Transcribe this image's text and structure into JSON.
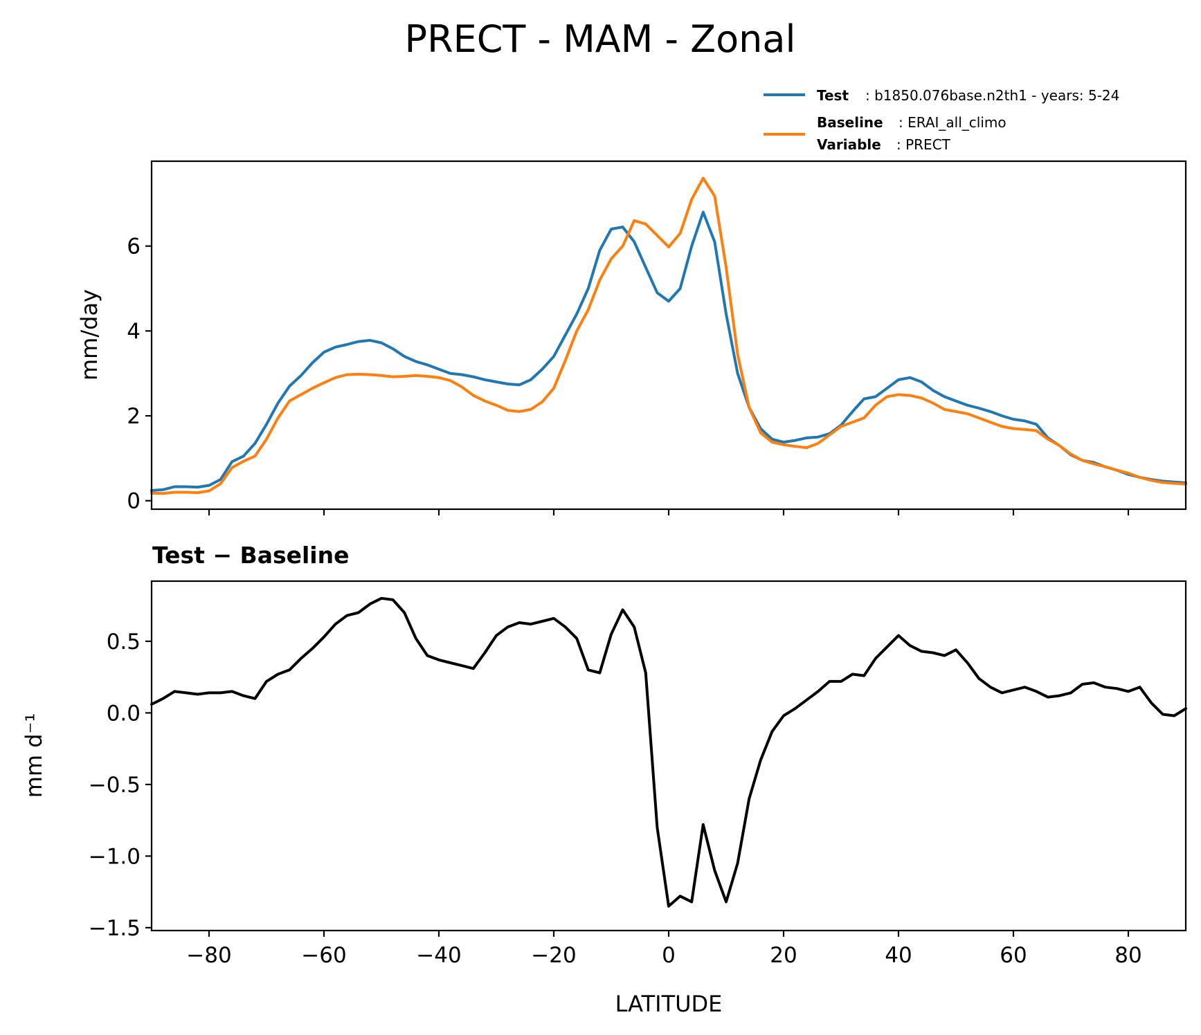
{
  "chart_data": [
    {
      "type": "line",
      "title": "PRECT - MAM - Zonal",
      "xlabel": "",
      "ylabel": "mm/day",
      "xlim": [
        -90,
        90
      ],
      "ylim": [
        -0.2,
        8.0
      ],
      "yticks": [
        0,
        2,
        4,
        6
      ],
      "ytick_labels": [
        "0",
        "2",
        "4",
        "6"
      ],
      "xticks": [
        -80,
        -60,
        -40,
        -20,
        0,
        20,
        40,
        60,
        80
      ],
      "x": [
        -90,
        -88,
        -86,
        -84,
        -82,
        -80,
        -78,
        -76,
        -74,
        -72,
        -70,
        -68,
        -66,
        -64,
        -62,
        -60,
        -58,
        -56,
        -54,
        -52,
        -50,
        -48,
        -46,
        -44,
        -42,
        -40,
        -38,
        -36,
        -34,
        -32,
        -30,
        -28,
        -26,
        -24,
        -22,
        -20,
        -18,
        -16,
        -14,
        -12,
        -10,
        -8,
        -6,
        -4,
        -2,
        0,
        2,
        4,
        6,
        8,
        10,
        12,
        14,
        16,
        18,
        20,
        22,
        24,
        26,
        28,
        30,
        32,
        34,
        36,
        38,
        40,
        42,
        44,
        46,
        48,
        50,
        52,
        54,
        56,
        58,
        60,
        62,
        64,
        66,
        68,
        70,
        72,
        74,
        76,
        78,
        80,
        82,
        84,
        86,
        88,
        90
      ],
      "series": [
        {
          "name": "Test",
          "color": "#1f77b4",
          "values": [
            0.24,
            0.26,
            0.33,
            0.33,
            0.32,
            0.36,
            0.5,
            0.92,
            1.05,
            1.35,
            1.8,
            2.3,
            2.7,
            2.95,
            3.25,
            3.5,
            3.62,
            3.68,
            3.75,
            3.78,
            3.72,
            3.58,
            3.4,
            3.28,
            3.2,
            3.1,
            3.0,
            2.97,
            2.92,
            2.85,
            2.8,
            2.75,
            2.73,
            2.85,
            3.1,
            3.4,
            3.9,
            4.4,
            5.0,
            5.9,
            6.4,
            6.45,
            6.1,
            5.5,
            4.9,
            4.7,
            5.0,
            6.0,
            6.8,
            6.1,
            4.4,
            3.0,
            2.2,
            1.7,
            1.45,
            1.38,
            1.42,
            1.48,
            1.5,
            1.58,
            1.78,
            2.1,
            2.4,
            2.45,
            2.65,
            2.85,
            2.9,
            2.8,
            2.6,
            2.45,
            2.35,
            2.25,
            2.18,
            2.1,
            2.0,
            1.92,
            1.88,
            1.8,
            1.48,
            1.3,
            1.08,
            0.95,
            0.9,
            0.8,
            0.72,
            0.62,
            0.55,
            0.5,
            0.46,
            0.44,
            0.42
          ]
        },
        {
          "name": "Baseline",
          "color": "#ff7f0e",
          "values": [
            0.18,
            0.17,
            0.2,
            0.2,
            0.19,
            0.23,
            0.4,
            0.78,
            0.93,
            1.05,
            1.45,
            1.95,
            2.35,
            2.5,
            2.65,
            2.78,
            2.9,
            2.97,
            2.98,
            2.97,
            2.95,
            2.92,
            2.93,
            2.95,
            2.93,
            2.9,
            2.83,
            2.68,
            2.48,
            2.35,
            2.25,
            2.13,
            2.1,
            2.15,
            2.33,
            2.65,
            3.3,
            4.0,
            4.5,
            5.2,
            5.7,
            6.0,
            6.6,
            6.52,
            6.25,
            5.98,
            6.3,
            7.1,
            7.6,
            7.18,
            5.5,
            3.45,
            2.2,
            1.6,
            1.38,
            1.32,
            1.28,
            1.25,
            1.35,
            1.55,
            1.75,
            1.85,
            1.95,
            2.25,
            2.45,
            2.5,
            2.48,
            2.42,
            2.3,
            2.15,
            2.1,
            2.05,
            1.95,
            1.85,
            1.75,
            1.7,
            1.68,
            1.65,
            1.45,
            1.3,
            1.1,
            0.95,
            0.87,
            0.8,
            0.72,
            0.65,
            0.55,
            0.48,
            0.43,
            0.41,
            0.39
          ]
        }
      ]
    },
    {
      "type": "line",
      "title": "Test − Baseline",
      "xlabel": "LATITUDE",
      "ylabel": "mm d⁻¹",
      "xlim": [
        -90,
        90
      ],
      "ylim": [
        -1.52,
        0.92
      ],
      "yticks": [
        0.5,
        0.0,
        -0.5,
        -1.0,
        -1.5
      ],
      "ytick_labels": [
        "0.5",
        "0.0",
        "−0.5",
        "−1.0",
        "−1.5"
      ],
      "xticks": [
        -80,
        -60,
        -40,
        -20,
        0,
        20,
        40,
        60,
        80
      ],
      "xtick_labels": [
        "−80",
        "−60",
        "−40",
        "−20",
        "0",
        "20",
        "40",
        "60",
        "80"
      ],
      "x": [
        -90,
        -88,
        -86,
        -84,
        -82,
        -80,
        -78,
        -76,
        -74,
        -72,
        -70,
        -68,
        -66,
        -64,
        -62,
        -60,
        -58,
        -56,
        -54,
        -52,
        -50,
        -48,
        -46,
        -44,
        -42,
        -40,
        -38,
        -36,
        -34,
        -32,
        -30,
        -28,
        -26,
        -24,
        -22,
        -20,
        -18,
        -16,
        -14,
        -12,
        -10,
        -8,
        -6,
        -4,
        -2,
        0,
        2,
        4,
        6,
        8,
        10,
        12,
        14,
        16,
        18,
        20,
        22,
        24,
        26,
        28,
        30,
        32,
        34,
        36,
        38,
        40,
        42,
        44,
        46,
        48,
        50,
        52,
        54,
        56,
        58,
        60,
        62,
        64,
        66,
        68,
        70,
        72,
        74,
        76,
        78,
        80,
        82,
        84,
        86,
        88,
        90
      ],
      "series": [
        {
          "name": "Test − Baseline",
          "color": "#000000",
          "values": [
            0.06,
            0.1,
            0.15,
            0.14,
            0.13,
            0.14,
            0.14,
            0.15,
            0.12,
            0.1,
            0.22,
            0.27,
            0.3,
            0.38,
            0.45,
            0.53,
            0.62,
            0.68,
            0.7,
            0.76,
            0.8,
            0.79,
            0.7,
            0.52,
            0.4,
            0.37,
            0.35,
            0.33,
            0.31,
            0.42,
            0.54,
            0.6,
            0.63,
            0.62,
            0.64,
            0.66,
            0.6,
            0.52,
            0.3,
            0.28,
            0.55,
            0.72,
            0.6,
            0.28,
            -0.8,
            -1.35,
            -1.28,
            -1.32,
            -0.78,
            -1.1,
            -1.32,
            -1.05,
            -0.6,
            -0.33,
            -0.13,
            -0.02,
            0.03,
            0.09,
            0.15,
            0.22,
            0.22,
            0.27,
            0.26,
            0.38,
            0.46,
            0.54,
            0.47,
            0.43,
            0.42,
            0.4,
            0.44,
            0.35,
            0.24,
            0.18,
            0.14,
            0.16,
            0.18,
            0.15,
            0.11,
            0.12,
            0.14,
            0.2,
            0.21,
            0.18,
            0.17,
            0.15,
            0.18,
            0.07,
            -0.01,
            -0.02,
            0.03
          ]
        }
      ]
    }
  ],
  "legend": {
    "test_key": "Test",
    "test_text": ": b1850.076base.n2th1 - years: 5-24",
    "baseline_key": "Baseline",
    "baseline_text": ": ERAI_all_climo",
    "variable_key": "Variable",
    "variable_text": ": PRECT"
  }
}
